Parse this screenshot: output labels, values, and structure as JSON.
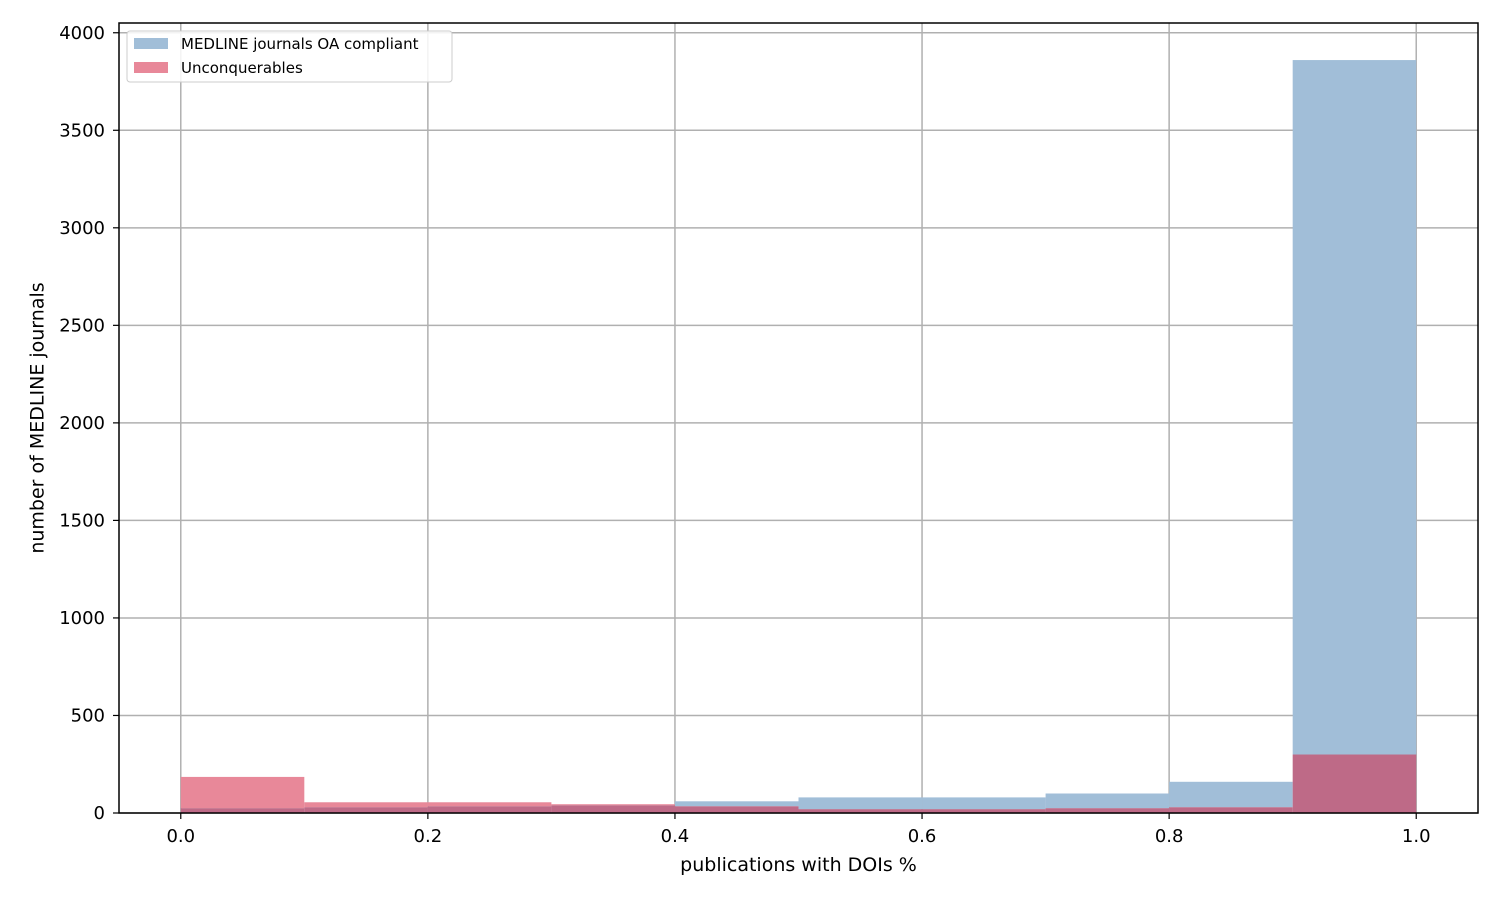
{
  "chart_data": {
    "type": "bar",
    "title": "",
    "xlabel": "publications with DOIs %",
    "ylabel": "number of MEDLINE journals",
    "xlim": [
      -0.05,
      1.05
    ],
    "ylim": [
      0,
      4050
    ],
    "grid": true,
    "legend_position": "top-left",
    "bin_edges": [
      0.0,
      0.1,
      0.2,
      0.3,
      0.4,
      0.5,
      0.6,
      0.7,
      0.8,
      0.9,
      1.0
    ],
    "x_ticks": [
      "0.0",
      "0.2",
      "0.4",
      "0.6",
      "0.8",
      "1.0"
    ],
    "x_tick_values": [
      0.0,
      0.2,
      0.4,
      0.6,
      0.8,
      1.0
    ],
    "y_ticks": [
      "0",
      "500",
      "1000",
      "1500",
      "2000",
      "2500",
      "3000",
      "3500",
      "4000"
    ],
    "y_tick_values": [
      0,
      500,
      1000,
      1500,
      2000,
      2500,
      3000,
      3500,
      4000
    ],
    "series": [
      {
        "name": "MEDLINE journals OA compliant",
        "color": "#a1bed8",
        "values": [
          25,
          30,
          35,
          40,
          60,
          80,
          80,
          100,
          160,
          3860
        ]
      },
      {
        "name": "Unconquerables",
        "color": "#e88899",
        "values": [
          185,
          55,
          55,
          45,
          35,
          20,
          20,
          25,
          30,
          300
        ]
      }
    ],
    "overlap_color": "#be6a87"
  }
}
